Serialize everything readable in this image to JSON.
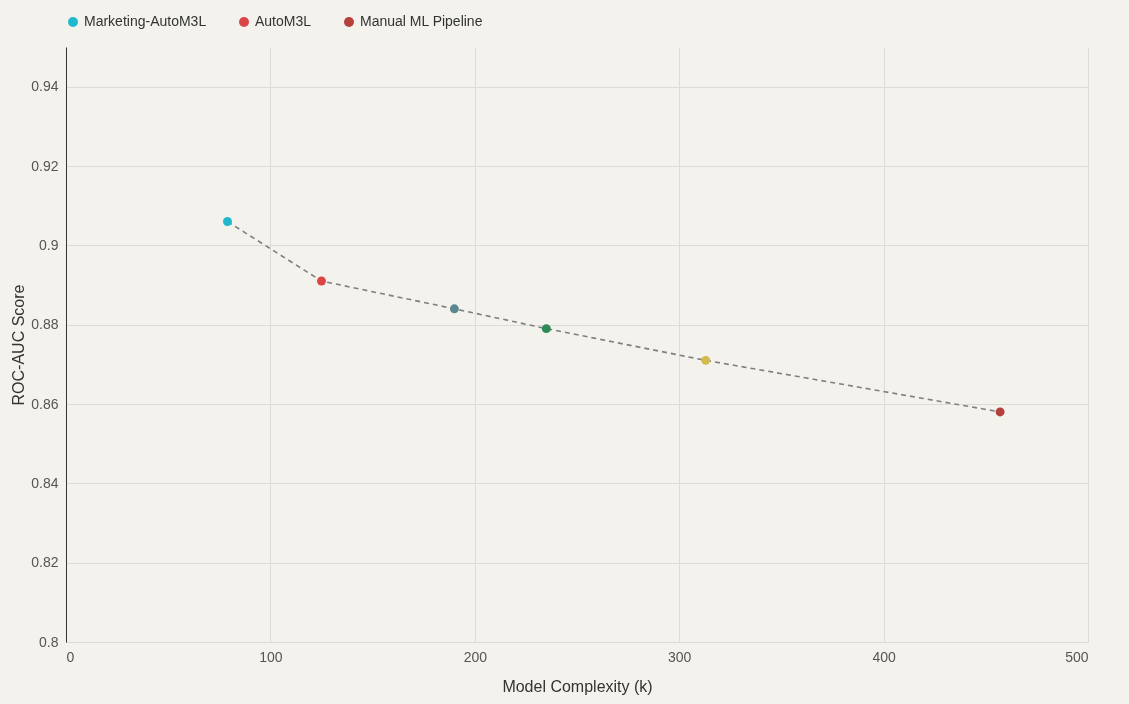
{
  "chart_data": {
    "type": "scatter",
    "xlabel": "Model Complexity (k)",
    "ylabel": "ROC-AUC Score",
    "xlim": [
      0,
      500
    ],
    "xticks": [
      0,
      100,
      200,
      300,
      400,
      500
    ],
    "ylim": [
      0.8,
      0.95
    ],
    "yticks": [
      0.8,
      0.82,
      0.84,
      0.86,
      0.88,
      0.9,
      0.92,
      0.94
    ],
    "grid": true,
    "legend": "top",
    "series": [
      {
        "type": "line",
        "color": "#7f7f7f",
        "line_style": "dashed",
        "x": [
          79,
          125,
          190,
          235,
          313,
          457
        ],
        "values": [
          0.906,
          0.891,
          0.884,
          0.879,
          0.871,
          0.858
        ]
      },
      {
        "name": "Marketing-AutoM3L",
        "color": "#1fb8cd",
        "marker": "circle",
        "x": [
          79
        ],
        "values": [
          0.906
        ]
      },
      {
        "name": "AutoM3L",
        "color": "#db4545",
        "marker": "circle",
        "x": [
          125
        ],
        "values": [
          0.891
        ]
      },
      {
        "color": "#2e8b57",
        "marker": "circle",
        "x": [
          235
        ],
        "values": [
          0.879
        ]
      },
      {
        "color": "#5d878f",
        "marker": "circle",
        "x": [
          190
        ],
        "values": [
          0.884
        ]
      },
      {
        "color": "#d2ba4c",
        "marker": "circle",
        "x": [
          313
        ],
        "values": [
          0.871
        ]
      },
      {
        "name": "Manual ML Pipeline",
        "color": "#b4413c",
        "marker": "circle",
        "x": [
          457
        ],
        "values": [
          0.858
        ]
      }
    ]
  }
}
